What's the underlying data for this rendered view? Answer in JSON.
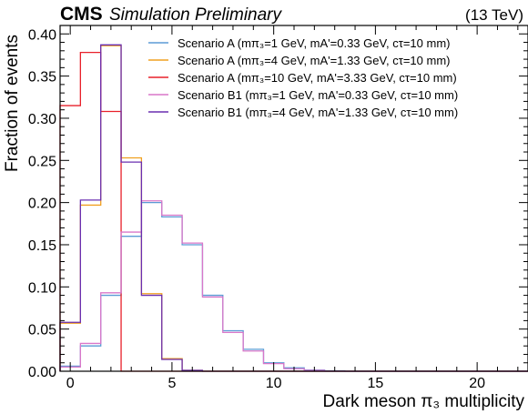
{
  "header": {
    "brand": "CMS",
    "status": "Simulation Preliminary",
    "energy": "(13 TeV)"
  },
  "chart_data": {
    "type": "step-histogram",
    "xlabel": "Dark meson π₃ multiplicity",
    "ylabel": "Fraction of events",
    "xlim": [
      -0.5,
      22.5
    ],
    "ylim": [
      0,
      0.41
    ],
    "xticks": [
      0,
      5,
      10,
      15,
      20
    ],
    "yticks": [
      0.0,
      0.05,
      0.1,
      0.15,
      0.2,
      0.25,
      0.3,
      0.35,
      0.4
    ],
    "ytick_labels": [
      "0.00",
      "0.05",
      "0.10",
      "0.15",
      "0.20",
      "0.25",
      "0.30",
      "0.35",
      "0.40"
    ],
    "grid": false,
    "legend_position": "top-right",
    "bin_edges": [
      -0.5,
      0.5,
      1.5,
      2.5,
      3.5,
      4.5,
      5.5,
      6.5,
      7.5,
      8.5,
      9.5,
      10.5,
      11.5,
      12.5,
      13.5,
      14.5,
      15.5,
      16.5,
      17.5,
      18.5,
      19.5,
      20.5,
      21.5,
      22.5
    ],
    "series": [
      {
        "name": "Scenario A (mπ₃=1 GeV, mA'=0.33 GeV, cτ=10 mm)",
        "color": "#5b9bd5",
        "values": [
          0.006,
          0.03,
          0.09,
          0.16,
          0.2,
          0.183,
          0.15,
          0.09,
          0.048,
          0.026,
          0.01,
          0.004,
          0.0015,
          0.0005,
          0,
          0,
          0,
          0,
          0,
          0,
          0,
          0,
          0
        ]
      },
      {
        "name": "Scenario A (mπ₃=4 GeV, mA'=1.33 GeV, cτ=10 mm)",
        "color": "#f0a020",
        "values": [
          0.057,
          0.197,
          0.386,
          0.253,
          0.092,
          0.015,
          0.001,
          0,
          0,
          0,
          0,
          0,
          0,
          0,
          0,
          0,
          0,
          0,
          0,
          0,
          0,
          0,
          0
        ]
      },
      {
        "name": "Scenario A (mπ₃=10 GeV, mA'=3.33 GeV, cτ=10 mm)",
        "color": "#e8202a",
        "values": [
          0.315,
          0.378,
          0.308,
          0,
          0,
          0,
          0,
          0,
          0,
          0,
          0,
          0,
          0,
          0,
          0,
          0,
          0,
          0,
          0,
          0,
          0,
          0,
          0
        ]
      },
      {
        "name": "Scenario B1 (mπ₃=1 GeV, mA'=0.33 GeV, cτ=10 mm)",
        "color": "#d977c9",
        "values": [
          0.005,
          0.033,
          0.093,
          0.165,
          0.202,
          0.185,
          0.152,
          0.088,
          0.046,
          0.024,
          0.009,
          0.003,
          0.001,
          0,
          0,
          0,
          0,
          0,
          0,
          0,
          0,
          0,
          0
        ]
      },
      {
        "name": "Scenario B1 (mπ₃=4 GeV, mA'=1.33 GeV, cτ=10 mm)",
        "color": "#6a2fb0",
        "values": [
          0.058,
          0.203,
          0.387,
          0.248,
          0.09,
          0.014,
          0.001,
          0,
          0,
          0,
          0,
          0,
          0,
          0,
          0,
          0,
          0,
          0,
          0,
          0,
          0,
          0,
          0
        ]
      }
    ]
  }
}
